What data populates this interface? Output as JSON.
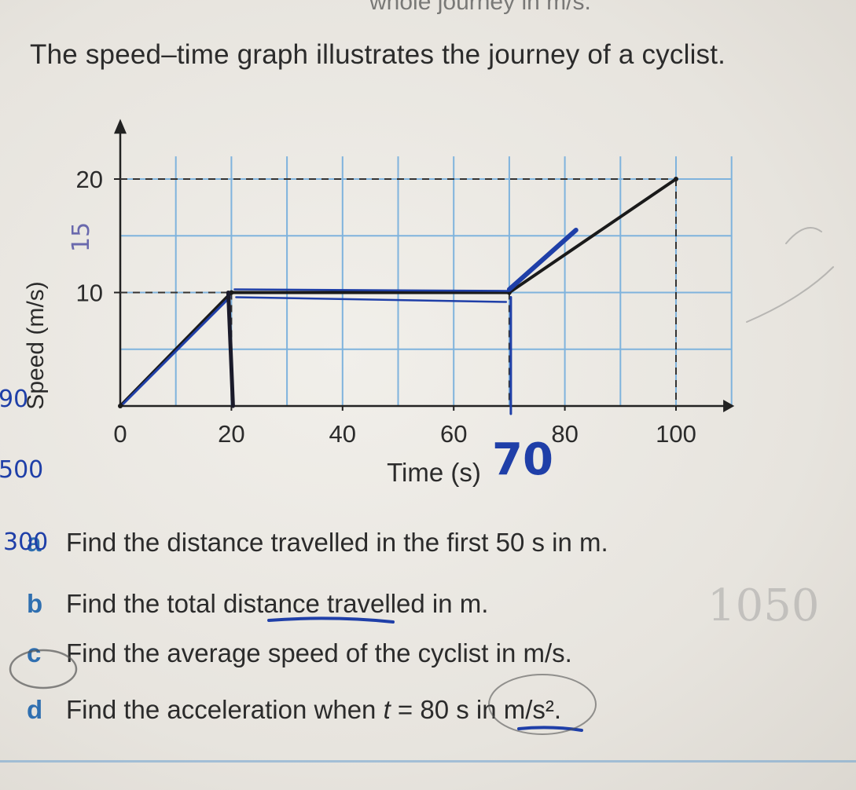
{
  "header": {
    "cut_text": "whole journey in m/s.",
    "intro": "The speed–time graph illustrates the journey of a cyclist."
  },
  "chart_data": {
    "type": "line",
    "xlabel": "Time (s)",
    "ylabel": "Speed (m/s)",
    "xlim": [
      0,
      100
    ],
    "ylim": [
      0,
      20
    ],
    "x_ticks": [
      0,
      20,
      40,
      60,
      80,
      100
    ],
    "y_ticks": [
      10,
      20
    ],
    "grid": true,
    "series": [
      {
        "x": [
          0,
          20,
          70,
          100
        ],
        "y": [
          0,
          10,
          10,
          20
        ]
      }
    ]
  },
  "questions": [
    {
      "letter": "a",
      "text": "Find the distance travelled in the first 50 s in m."
    },
    {
      "letter": "b",
      "text": "Find the total distance travelled in m."
    },
    {
      "letter": "c",
      "text": "Find the average speed of the cyclist in m/s."
    },
    {
      "letter": "d",
      "text_pre": "Find the acceleration when ",
      "var": "t",
      "text_post": " = 80 s in m/s²."
    }
  ],
  "handwriting": {
    "seventy": "70",
    "fifteen": "15",
    "left_notes": [
      "90",
      "500",
      "300"
    ],
    "right_note": "1050",
    "ink_color": "#1f3fa8"
  }
}
